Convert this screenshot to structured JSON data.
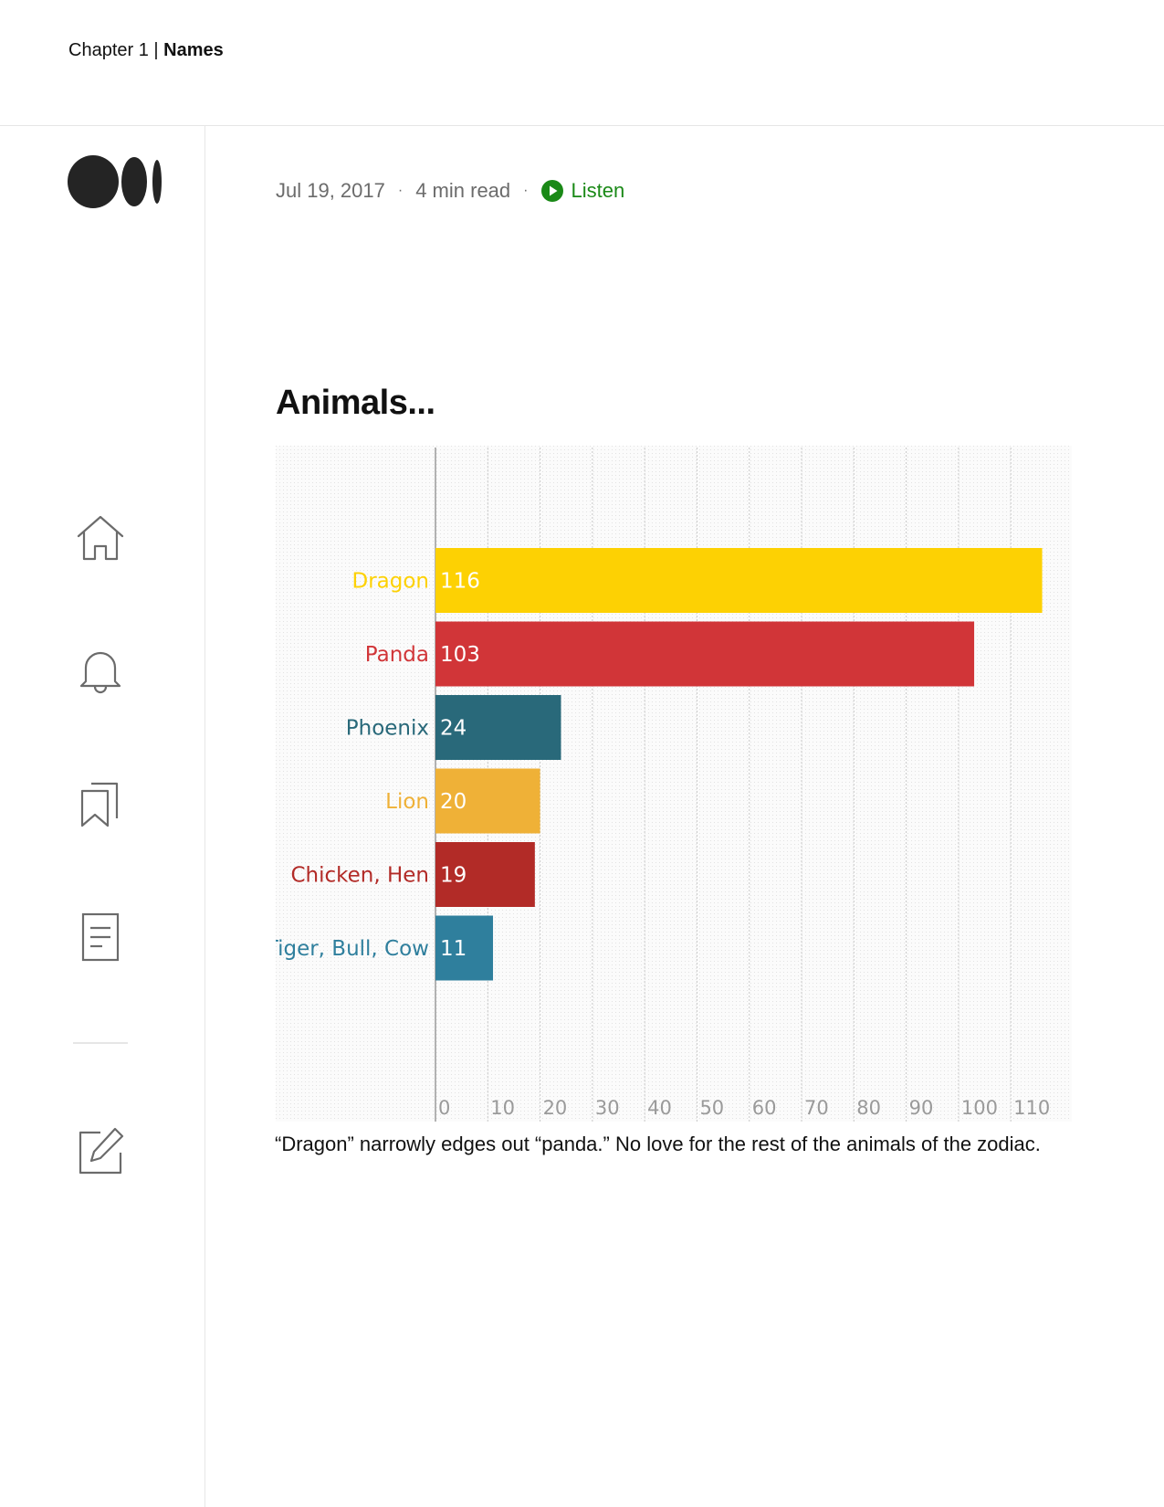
{
  "header": {
    "chapter_prefix": "Chapter 1 | ",
    "chapter_title": "Names"
  },
  "sidebar": {
    "logo_icon": "medium-logo-icon",
    "nav": [
      {
        "icon": "home-icon",
        "label": "Home"
      },
      {
        "icon": "bell-icon",
        "label": "Notifications"
      },
      {
        "icon": "bookmarks-icon",
        "label": "Lists"
      },
      {
        "icon": "document-icon",
        "label": "Stories"
      },
      {
        "icon": "edit-icon",
        "label": "Write"
      }
    ]
  },
  "article": {
    "date": "Jul 19, 2017",
    "separator": "·",
    "read_time": "4 min read",
    "listen_label": "Listen",
    "listen_icon": "play-circle-icon",
    "listen_color": "#1a8917",
    "section_heading": "Animals...",
    "caption": "“Dragon” narrowly edges out “panda.” No love for the rest of the animals of the zodiac."
  },
  "chart_data": {
    "type": "bar",
    "orientation": "horizontal",
    "categories": [
      "Dragon",
      "Panda",
      "Phoenix",
      "Lion",
      "Chicken, Hen",
      "Tiger, Bull, Cow"
    ],
    "values": [
      116,
      103,
      24,
      20,
      19,
      11
    ],
    "colors": [
      "#fdd103",
      "#d13538",
      "#29697a",
      "#efb137",
      "#b22b27",
      "#2f7f9d"
    ],
    "data_labels": [
      "116",
      "103",
      "24",
      "20",
      "19",
      "11"
    ],
    "xlim": [
      0,
      118
    ],
    "xticks": [
      0,
      10,
      20,
      30,
      40,
      50,
      60,
      70,
      80,
      90,
      100,
      110
    ],
    "title": "",
    "xlabel": "",
    "ylabel": "",
    "grid": true,
    "background": "#f4f4f4",
    "gridline_color": "#c8c8c8",
    "tick_label_color": "#9a9a9a"
  }
}
